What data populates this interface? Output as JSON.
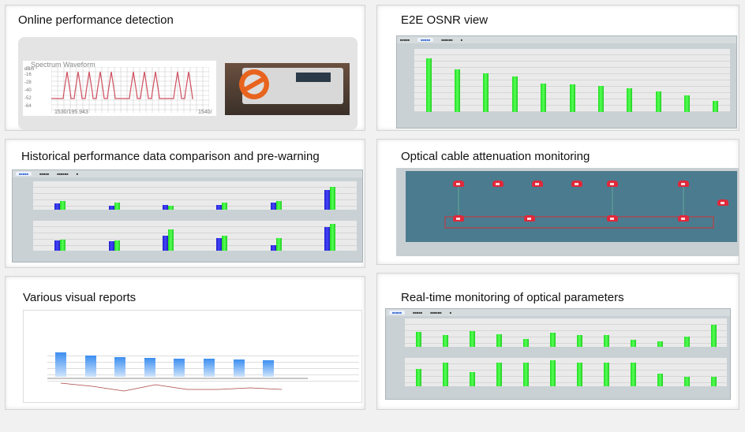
{
  "panels": {
    "online": {
      "title": "Online performance detection",
      "spectrum": {
        "title": "Spectrum Waveform",
        "unit": "dBm",
        "y_ticks": [
          "-16",
          "-28",
          "-40",
          "-52",
          "-64"
        ],
        "x_start": "1530/195.943",
        "x_end": "1540/"
      },
      "device_icon": "no-entry-icon"
    },
    "osnr": {
      "title": "E2E OSNR view",
      "bar_values": [
        68,
        54,
        49,
        45,
        36,
        35,
        33,
        30,
        26,
        21,
        14
      ],
      "max": 80
    },
    "historical": {
      "title": "Historical performance data comparison and pre-warning",
      "top_pairs": [
        [
          9,
          12
        ],
        [
          6,
          10
        ],
        [
          7,
          6
        ],
        [
          7,
          10
        ],
        [
          10,
          12
        ],
        [
          28,
          32
        ]
      ],
      "bottom_pairs": [
        [
          14,
          15
        ],
        [
          13,
          14
        ],
        [
          20,
          28
        ],
        [
          17,
          20
        ],
        [
          7,
          17
        ],
        [
          32,
          36
        ]
      ],
      "max": 40
    },
    "cable": {
      "title": "Optical cable attenuation monitoring"
    },
    "reports": {
      "title": "Various visual reports",
      "bar_values": [
        54,
        48,
        44,
        42,
        40,
        40,
        39,
        37
      ],
      "max": 70
    },
    "realtime": {
      "title": "Real-time monitoring of optical parameters",
      "top_values": [
        26,
        20,
        27,
        22,
        14,
        24,
        20,
        20,
        12,
        10,
        18,
        38
      ],
      "bottom_values": [
        30,
        40,
        24,
        40,
        40,
        44,
        40,
        40,
        40,
        22,
        16,
        16
      ],
      "max": 48
    }
  },
  "colors": {
    "green": "#33ee33",
    "blue": "#3333ee",
    "topology_bg": "#4b7b8f",
    "node": "#e0283a"
  }
}
